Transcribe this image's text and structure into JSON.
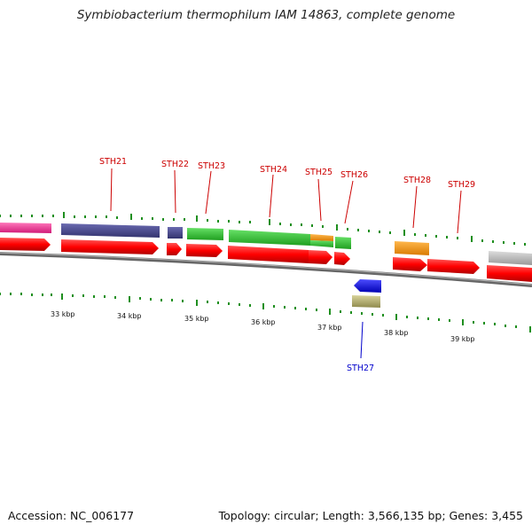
{
  "title": "Symbiobacterium thermophilum IAM 14863, complete genome",
  "footer": {
    "accession": "Accession: NC_006177",
    "summary": "Topology: circular; Length: 3,566,135 bp; Genes: 3,455"
  },
  "colors": {
    "backbone": "#888888",
    "tick_green": "#1f8f1f",
    "label_red": "#cc0000",
    "label_blue": "#0000cc",
    "cds_red": "#ff0000",
    "pink": "#ff3399",
    "slate": "#4a4a9a",
    "green": "#33cc33",
    "orange": "#ff9900",
    "blue": "#0000ff",
    "khaki": "#bdb76b",
    "gray": "#bbbbbb"
  },
  "kbp_labels": [
    "33 kbp",
    "34 kbp",
    "35 kbp",
    "36 kbp",
    "37 kbp",
    "38 kbp",
    "39 kbp"
  ],
  "gene_labels": [
    {
      "text": "STH21",
      "strand": "forward"
    },
    {
      "text": "STH22",
      "strand": "forward"
    },
    {
      "text": "STH23",
      "strand": "forward"
    },
    {
      "text": "STH24",
      "strand": "forward"
    },
    {
      "text": "STH25",
      "strand": "forward"
    },
    {
      "text": "STH26",
      "strand": "forward"
    },
    {
      "text": "STH28",
      "strand": "forward"
    },
    {
      "text": "STH29",
      "strand": "forward"
    },
    {
      "text": "STH27",
      "strand": "reverse"
    }
  ]
}
